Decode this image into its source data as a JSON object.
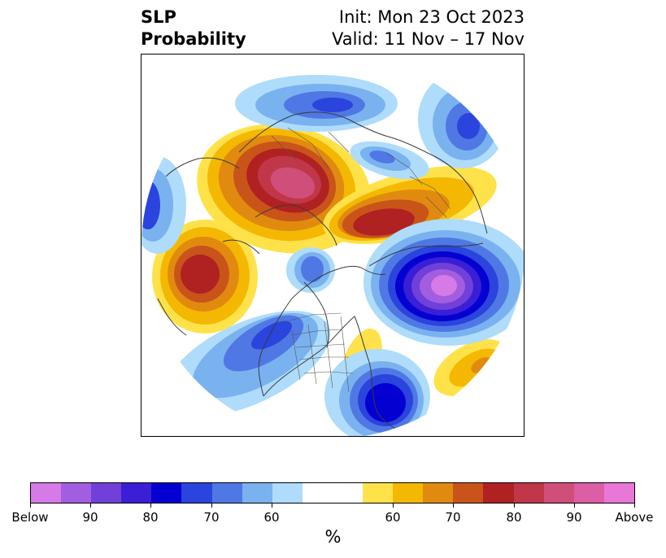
{
  "header": {
    "title_line1": "SLP",
    "title_line2": "Probability",
    "init_text": "Init: Mon 23 Oct 2023",
    "valid_text": "Valid: 11 Nov – 17 Nov"
  },
  "colorbar": {
    "unit_label": "%",
    "colors": [
      "#d67ae8",
      "#a25ee0",
      "#7040d8",
      "#3a1fd6",
      "#0400d2",
      "#2a44dd",
      "#5078e4",
      "#7ab2f0",
      "#aedcfa",
      "#ffffff",
      "#ffffff",
      "#ffe24a",
      "#f5b802",
      "#e08b10",
      "#c9541a",
      "#b02121",
      "#c0374a",
      "#d04e7a",
      "#dc5ea4",
      "#e877d8"
    ],
    "tick_labels": [
      "Below",
      "90",
      "80",
      "70",
      "60",
      "60",
      "70",
      "80",
      "90",
      "Above"
    ]
  },
  "map": {
    "projection": "north-polar-stereographic",
    "features": [
      "coastlines",
      "country-borders",
      "us-state-borders"
    ],
    "anomaly_centers": [
      {
        "region": "northern-europe",
        "category": "above",
        "level": "80+"
      },
      {
        "region": "west-siberia",
        "category": "above",
        "level": "80"
      },
      {
        "region": "north-pacific",
        "category": "above",
        "level": "80"
      },
      {
        "region": "north-atlantic",
        "category": "below",
        "level": "90+"
      },
      {
        "region": "eastern-united-states",
        "category": "below",
        "level": "80"
      },
      {
        "region": "eastern-siberia",
        "category": "below",
        "level": "70"
      },
      {
        "region": "mediterranean-north-africa",
        "category": "below",
        "level": "70"
      },
      {
        "region": "subtropical-atlantic",
        "category": "above",
        "level": "70"
      }
    ]
  }
}
